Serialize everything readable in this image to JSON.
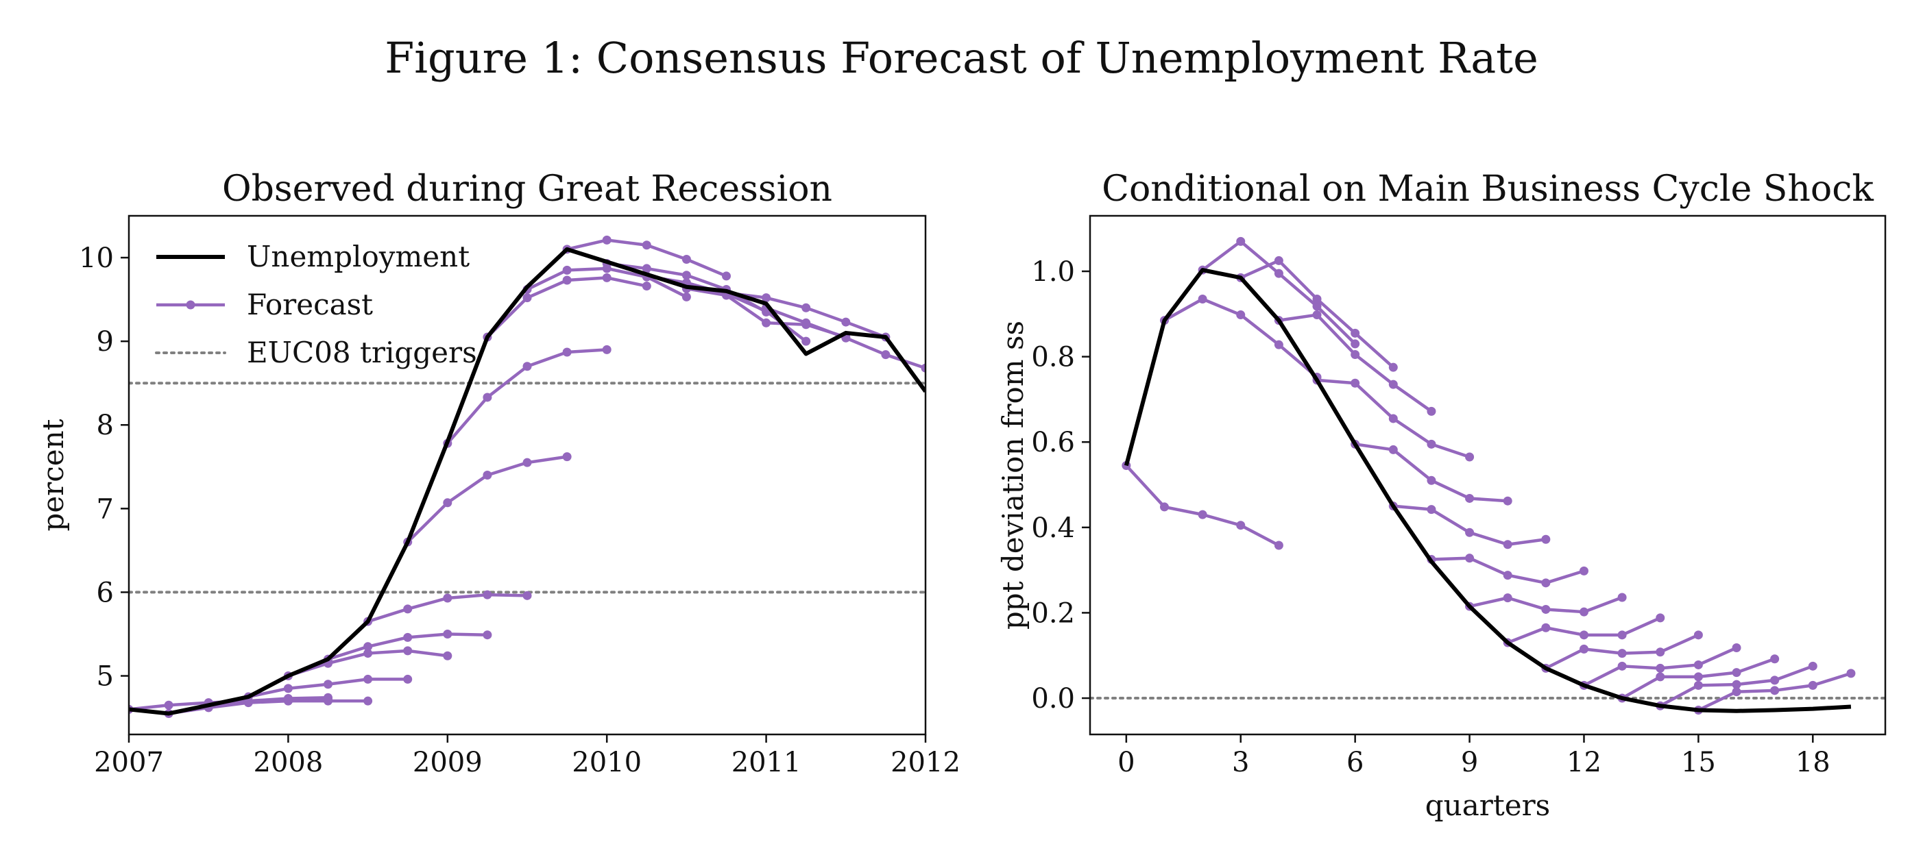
{
  "figure_title": "Figure 1: Consensus Forecast of Unemployment Rate",
  "colors": {
    "actual": "#000000",
    "forecast": "#9467bd",
    "trigger": "#808080"
  },
  "chart_data": [
    {
      "type": "line",
      "title": "Observed during Great Recession",
      "xlabel": "",
      "ylabel": "percent",
      "xlim": [
        2007,
        2012
      ],
      "ylim": [
        4.3,
        10.5
      ],
      "xticks": [
        2007,
        2008,
        2009,
        2010,
        2011,
        2012
      ],
      "yticks": [
        5,
        6,
        7,
        8,
        9,
        10
      ],
      "grid": false,
      "legend": {
        "position": "top-left",
        "entries": [
          {
            "label": "Unemployment",
            "style": "actual"
          },
          {
            "label": "Forecast",
            "style": "forecast"
          },
          {
            "label": "EUC08 triggers",
            "style": "trigger"
          }
        ]
      },
      "hlines": [
        8.5,
        6.0
      ],
      "actual": {
        "x": [
          2007.0,
          2007.25,
          2007.5,
          2007.75,
          2008.0,
          2008.25,
          2008.5,
          2008.75,
          2009.0,
          2009.25,
          2009.5,
          2009.75,
          2010.0,
          2010.25,
          2010.5,
          2010.75,
          2011.0,
          2011.25,
          2011.5,
          2011.75,
          2012.0
        ],
        "y": [
          4.6,
          4.55,
          4.65,
          4.75,
          5.0,
          5.2,
          5.65,
          6.6,
          7.8,
          9.05,
          9.65,
          10.1,
          9.95,
          9.8,
          9.65,
          9.6,
          9.45,
          8.85,
          9.1,
          9.05,
          8.4
        ]
      },
      "forecasts": [
        {
          "x": [
            2007.0,
            2007.25,
            2007.5,
            2007.75,
            2008.0,
            2008.25,
            2008.5
          ],
          "y": [
            4.6,
            4.65,
            4.68,
            4.7,
            4.7,
            4.7,
            4.7
          ]
        },
        {
          "x": [
            2007.25,
            2007.5,
            2007.75,
            2008.0,
            2008.25
          ],
          "y": [
            4.55,
            4.62,
            4.68,
            4.7,
            4.72
          ]
        },
        {
          "x": [
            2007.5,
            2007.75,
            2008.0,
            2008.25
          ],
          "y": [
            4.65,
            4.7,
            4.73,
            4.74
          ]
        },
        {
          "x": [
            2007.75,
            2008.0,
            2008.25,
            2008.5,
            2008.75
          ],
          "y": [
            4.75,
            4.85,
            4.9,
            4.96,
            4.96
          ]
        },
        {
          "x": [
            2008.0,
            2008.25,
            2008.5,
            2008.75,
            2009.0
          ],
          "y": [
            5.0,
            5.15,
            5.27,
            5.3,
            5.24
          ]
        },
        {
          "x": [
            2008.25,
            2008.5,
            2008.75,
            2009.0,
            2009.25
          ],
          "y": [
            5.2,
            5.35,
            5.46,
            5.5,
            5.49
          ]
        },
        {
          "x": [
            2008.5,
            2008.75,
            2009.0,
            2009.25,
            2009.5
          ],
          "y": [
            5.65,
            5.8,
            5.93,
            5.97,
            5.96
          ]
        },
        {
          "x": [
            2008.75,
            2009.0,
            2009.25,
            2009.5,
            2009.75
          ],
          "y": [
            6.6,
            7.07,
            7.4,
            7.55,
            7.62
          ]
        },
        {
          "x": [
            2009.0,
            2009.25,
            2009.5,
            2009.75,
            2010.0
          ],
          "y": [
            7.78,
            8.33,
            8.7,
            8.87,
            8.9
          ]
        },
        {
          "x": [
            2009.25,
            2009.5,
            2009.75,
            2010.0,
            2010.25
          ],
          "y": [
            9.05,
            9.52,
            9.73,
            9.76,
            9.66
          ]
        },
        {
          "x": [
            2009.5,
            2009.75,
            2010.0,
            2010.25,
            2010.5
          ],
          "y": [
            9.62,
            9.85,
            9.87,
            9.77,
            9.53
          ]
        },
        {
          "x": [
            2009.75,
            2010.0,
            2010.25,
            2010.5,
            2010.75
          ],
          "y": [
            10.1,
            10.21,
            10.15,
            9.98,
            9.78
          ]
        },
        {
          "x": [
            2010.0,
            2010.25,
            2010.5,
            2010.75,
            2011.0
          ],
          "y": [
            9.93,
            9.87,
            9.79,
            9.62,
            9.35
          ]
        },
        {
          "x": [
            2010.25,
            2010.5,
            2010.75,
            2011.0,
            2011.25
          ],
          "y": [
            9.78,
            9.7,
            9.57,
            9.36,
            9.0
          ]
        },
        {
          "x": [
            2010.5,
            2010.75,
            2011.0,
            2011.25,
            2011.5
          ],
          "y": [
            9.63,
            9.55,
            9.22,
            9.2,
            9.05
          ]
        },
        {
          "x": [
            2010.75,
            2011.0,
            2011.25,
            2011.5,
            2011.75
          ],
          "y": [
            9.58,
            9.52,
            9.4,
            9.23,
            9.05
          ]
        },
        {
          "x": [
            2011.0,
            2011.25,
            2011.5,
            2011.75,
            2012.0
          ],
          "y": [
            9.4,
            9.22,
            9.04,
            8.84,
            8.68
          ]
        }
      ]
    },
    {
      "type": "line",
      "title": "Conditional on Main Business Cycle Shock",
      "xlabel": "quarters",
      "ylabel": "ppt deviation from ss",
      "xlim": [
        -0.95,
        19.9
      ],
      "ylim": [
        -0.085,
        1.13
      ],
      "xticks": [
        0,
        3,
        6,
        9,
        12,
        15,
        18
      ],
      "yticks": [
        0.0,
        0.2,
        0.4,
        0.6,
        0.8,
        1.0
      ],
      "ytick_labels": [
        "0.0",
        "0.2",
        "0.4",
        "0.6",
        "0.8",
        "1.0"
      ],
      "grid": false,
      "hlines": [
        0.0
      ],
      "actual": {
        "x": [
          0,
          1,
          2,
          3,
          4,
          5,
          6,
          7,
          8,
          9,
          10,
          11,
          12,
          13,
          14,
          15,
          16,
          17,
          18,
          19
        ],
        "y": [
          0.545,
          0.885,
          1.003,
          0.985,
          0.885,
          0.745,
          0.595,
          0.45,
          0.32,
          0.215,
          0.13,
          0.07,
          0.03,
          0.0,
          -0.018,
          -0.028,
          -0.03,
          -0.028,
          -0.025,
          -0.02
        ]
      },
      "forecasts": [
        {
          "x": [
            0,
            1,
            2,
            3,
            4
          ],
          "y": [
            0.545,
            0.448,
            0.43,
            0.405,
            0.358
          ]
        },
        {
          "x": [
            1,
            2,
            3,
            4,
            5
          ],
          "y": [
            0.885,
            0.935,
            0.898,
            0.828,
            0.752
          ]
        },
        {
          "x": [
            2,
            3,
            4,
            5,
            6
          ],
          "y": [
            1.003,
            1.07,
            0.995,
            0.918,
            0.83
          ]
        },
        {
          "x": [
            3,
            4,
            5,
            6,
            7
          ],
          "y": [
            0.985,
            1.025,
            0.935,
            0.855,
            0.775
          ]
        },
        {
          "x": [
            4,
            5,
            6,
            7,
            8
          ],
          "y": [
            0.885,
            0.898,
            0.805,
            0.735,
            0.672
          ]
        },
        {
          "x": [
            5,
            6,
            7,
            8,
            9
          ],
          "y": [
            0.745,
            0.738,
            0.655,
            0.595,
            0.565
          ]
        },
        {
          "x": [
            6,
            7,
            8,
            9,
            10
          ],
          "y": [
            0.595,
            0.582,
            0.51,
            0.468,
            0.462
          ]
        },
        {
          "x": [
            7,
            8,
            9,
            10,
            11
          ],
          "y": [
            0.45,
            0.442,
            0.388,
            0.36,
            0.372
          ]
        },
        {
          "x": [
            8,
            9,
            10,
            11,
            12
          ],
          "y": [
            0.325,
            0.328,
            0.288,
            0.27,
            0.298
          ]
        },
        {
          "x": [
            9,
            10,
            11,
            12,
            13
          ],
          "y": [
            0.215,
            0.235,
            0.208,
            0.202,
            0.236
          ]
        },
        {
          "x": [
            10,
            11,
            12,
            13,
            14
          ],
          "y": [
            0.13,
            0.165,
            0.148,
            0.148,
            0.188
          ]
        },
        {
          "x": [
            11,
            12,
            13,
            14,
            15
          ],
          "y": [
            0.07,
            0.115,
            0.105,
            0.108,
            0.148
          ]
        },
        {
          "x": [
            12,
            13,
            14,
            15,
            16
          ],
          "y": [
            0.03,
            0.075,
            0.07,
            0.078,
            0.118
          ]
        },
        {
          "x": [
            13,
            14,
            15,
            16,
            17
          ],
          "y": [
            0.0,
            0.05,
            0.05,
            0.06,
            0.092
          ]
        },
        {
          "x": [
            14,
            15,
            16,
            17,
            18
          ],
          "y": [
            -0.018,
            0.03,
            0.032,
            0.042,
            0.075
          ]
        },
        {
          "x": [
            15,
            16,
            17,
            18,
            19
          ],
          "y": [
            -0.028,
            0.015,
            0.018,
            0.03,
            0.058
          ]
        }
      ]
    }
  ]
}
